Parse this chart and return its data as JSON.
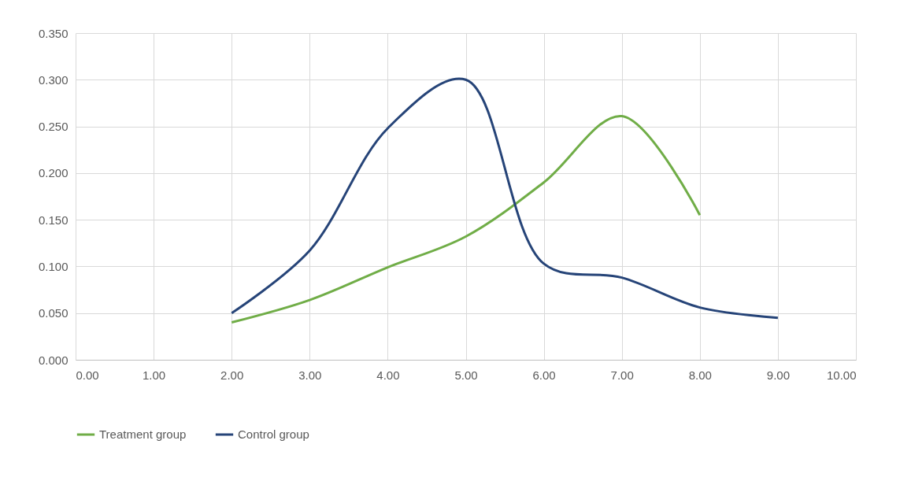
{
  "chart_data": {
    "type": "line",
    "series": [
      {
        "name": "Treatment group",
        "color": "#70ad47",
        "x": [
          2,
          3,
          4,
          5,
          6,
          7,
          8
        ],
        "values": [
          0.04,
          0.064,
          0.099,
          0.132,
          0.19,
          0.261,
          0.155
        ]
      },
      {
        "name": "Control group",
        "color": "#264478",
        "x": [
          2,
          3,
          4,
          5,
          6,
          7,
          8,
          9
        ],
        "values": [
          0.05,
          0.117,
          0.248,
          0.3,
          0.103,
          0.088,
          0.056,
          0.045
        ]
      }
    ],
    "xlim": [
      0,
      10
    ],
    "xticks": [
      {
        "value": 0,
        "label": "0.00"
      },
      {
        "value": 1,
        "label": "1.00"
      },
      {
        "value": 2,
        "label": "2.00"
      },
      {
        "value": 3,
        "label": "3.00"
      },
      {
        "value": 4,
        "label": "4.00"
      },
      {
        "value": 5,
        "label": "5.00"
      },
      {
        "value": 6,
        "label": "6.00"
      },
      {
        "value": 7,
        "label": "7.00"
      },
      {
        "value": 8,
        "label": "8.00"
      },
      {
        "value": 9,
        "label": "9.00"
      },
      {
        "value": 10,
        "label": "10.00"
      }
    ],
    "ylim": [
      0,
      0.35
    ],
    "yticks": [
      {
        "value": 0,
        "label": "0.000"
      },
      {
        "value": 0.05,
        "label": "0.050"
      },
      {
        "value": 0.1,
        "label": "0.100"
      },
      {
        "value": 0.15,
        "label": "0.150"
      },
      {
        "value": 0.2,
        "label": "0.200"
      },
      {
        "value": 0.25,
        "label": "0.250"
      },
      {
        "value": 0.3,
        "label": "0.300"
      },
      {
        "value": 0.35,
        "label": "0.350"
      }
    ],
    "grid": true,
    "legend": "bottom",
    "marker": "none",
    "line_style": "solid"
  }
}
